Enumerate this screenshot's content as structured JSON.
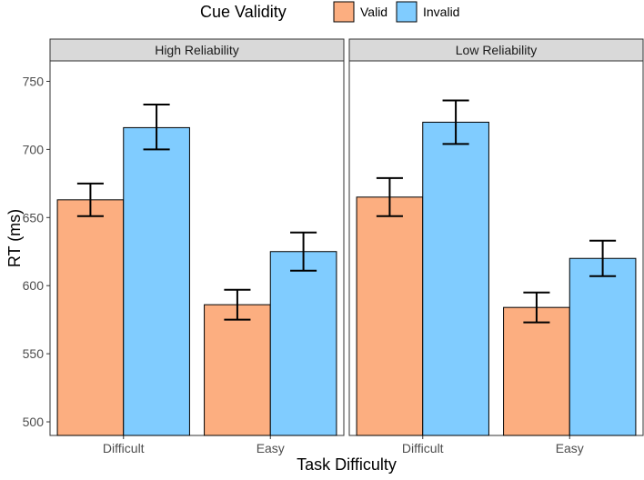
{
  "chart_data": {
    "type": "bar",
    "ylabel": "RT (ms)",
    "xlabel": "Task Difficulty",
    "ylim": [
      490,
      765
    ],
    "yticks": [
      500,
      550,
      600,
      650,
      700,
      750
    ],
    "grid": false,
    "legend": {
      "title": "Cue Validity",
      "position": "top",
      "entries": [
        {
          "name": "Valid",
          "color": "#fcae80"
        },
        {
          "name": "Invalid",
          "color": "#80ccff"
        }
      ]
    },
    "panels": [
      {
        "title": "High Reliability",
        "categories": [
          "Difficult",
          "Easy"
        ],
        "series": [
          {
            "name": "Valid",
            "color": "#fcae80",
            "values": [
              663,
              586
            ],
            "error_low": [
              651,
              575
            ],
            "error_high": [
              675,
              597
            ]
          },
          {
            "name": "Invalid",
            "color": "#80ccff",
            "values": [
              716,
              625
            ],
            "error_low": [
              700,
              611
            ],
            "error_high": [
              733,
              639
            ]
          }
        ]
      },
      {
        "title": "Low Reliability",
        "categories": [
          "Difficult",
          "Easy"
        ],
        "series": [
          {
            "name": "Valid",
            "color": "#fcae80",
            "values": [
              665,
              584
            ],
            "error_low": [
              651,
              573
            ],
            "error_high": [
              679,
              595
            ]
          },
          {
            "name": "Invalid",
            "color": "#80ccff",
            "values": [
              720,
              620
            ],
            "error_low": [
              704,
              607
            ],
            "error_high": [
              736,
              633
            ]
          }
        ]
      }
    ]
  }
}
